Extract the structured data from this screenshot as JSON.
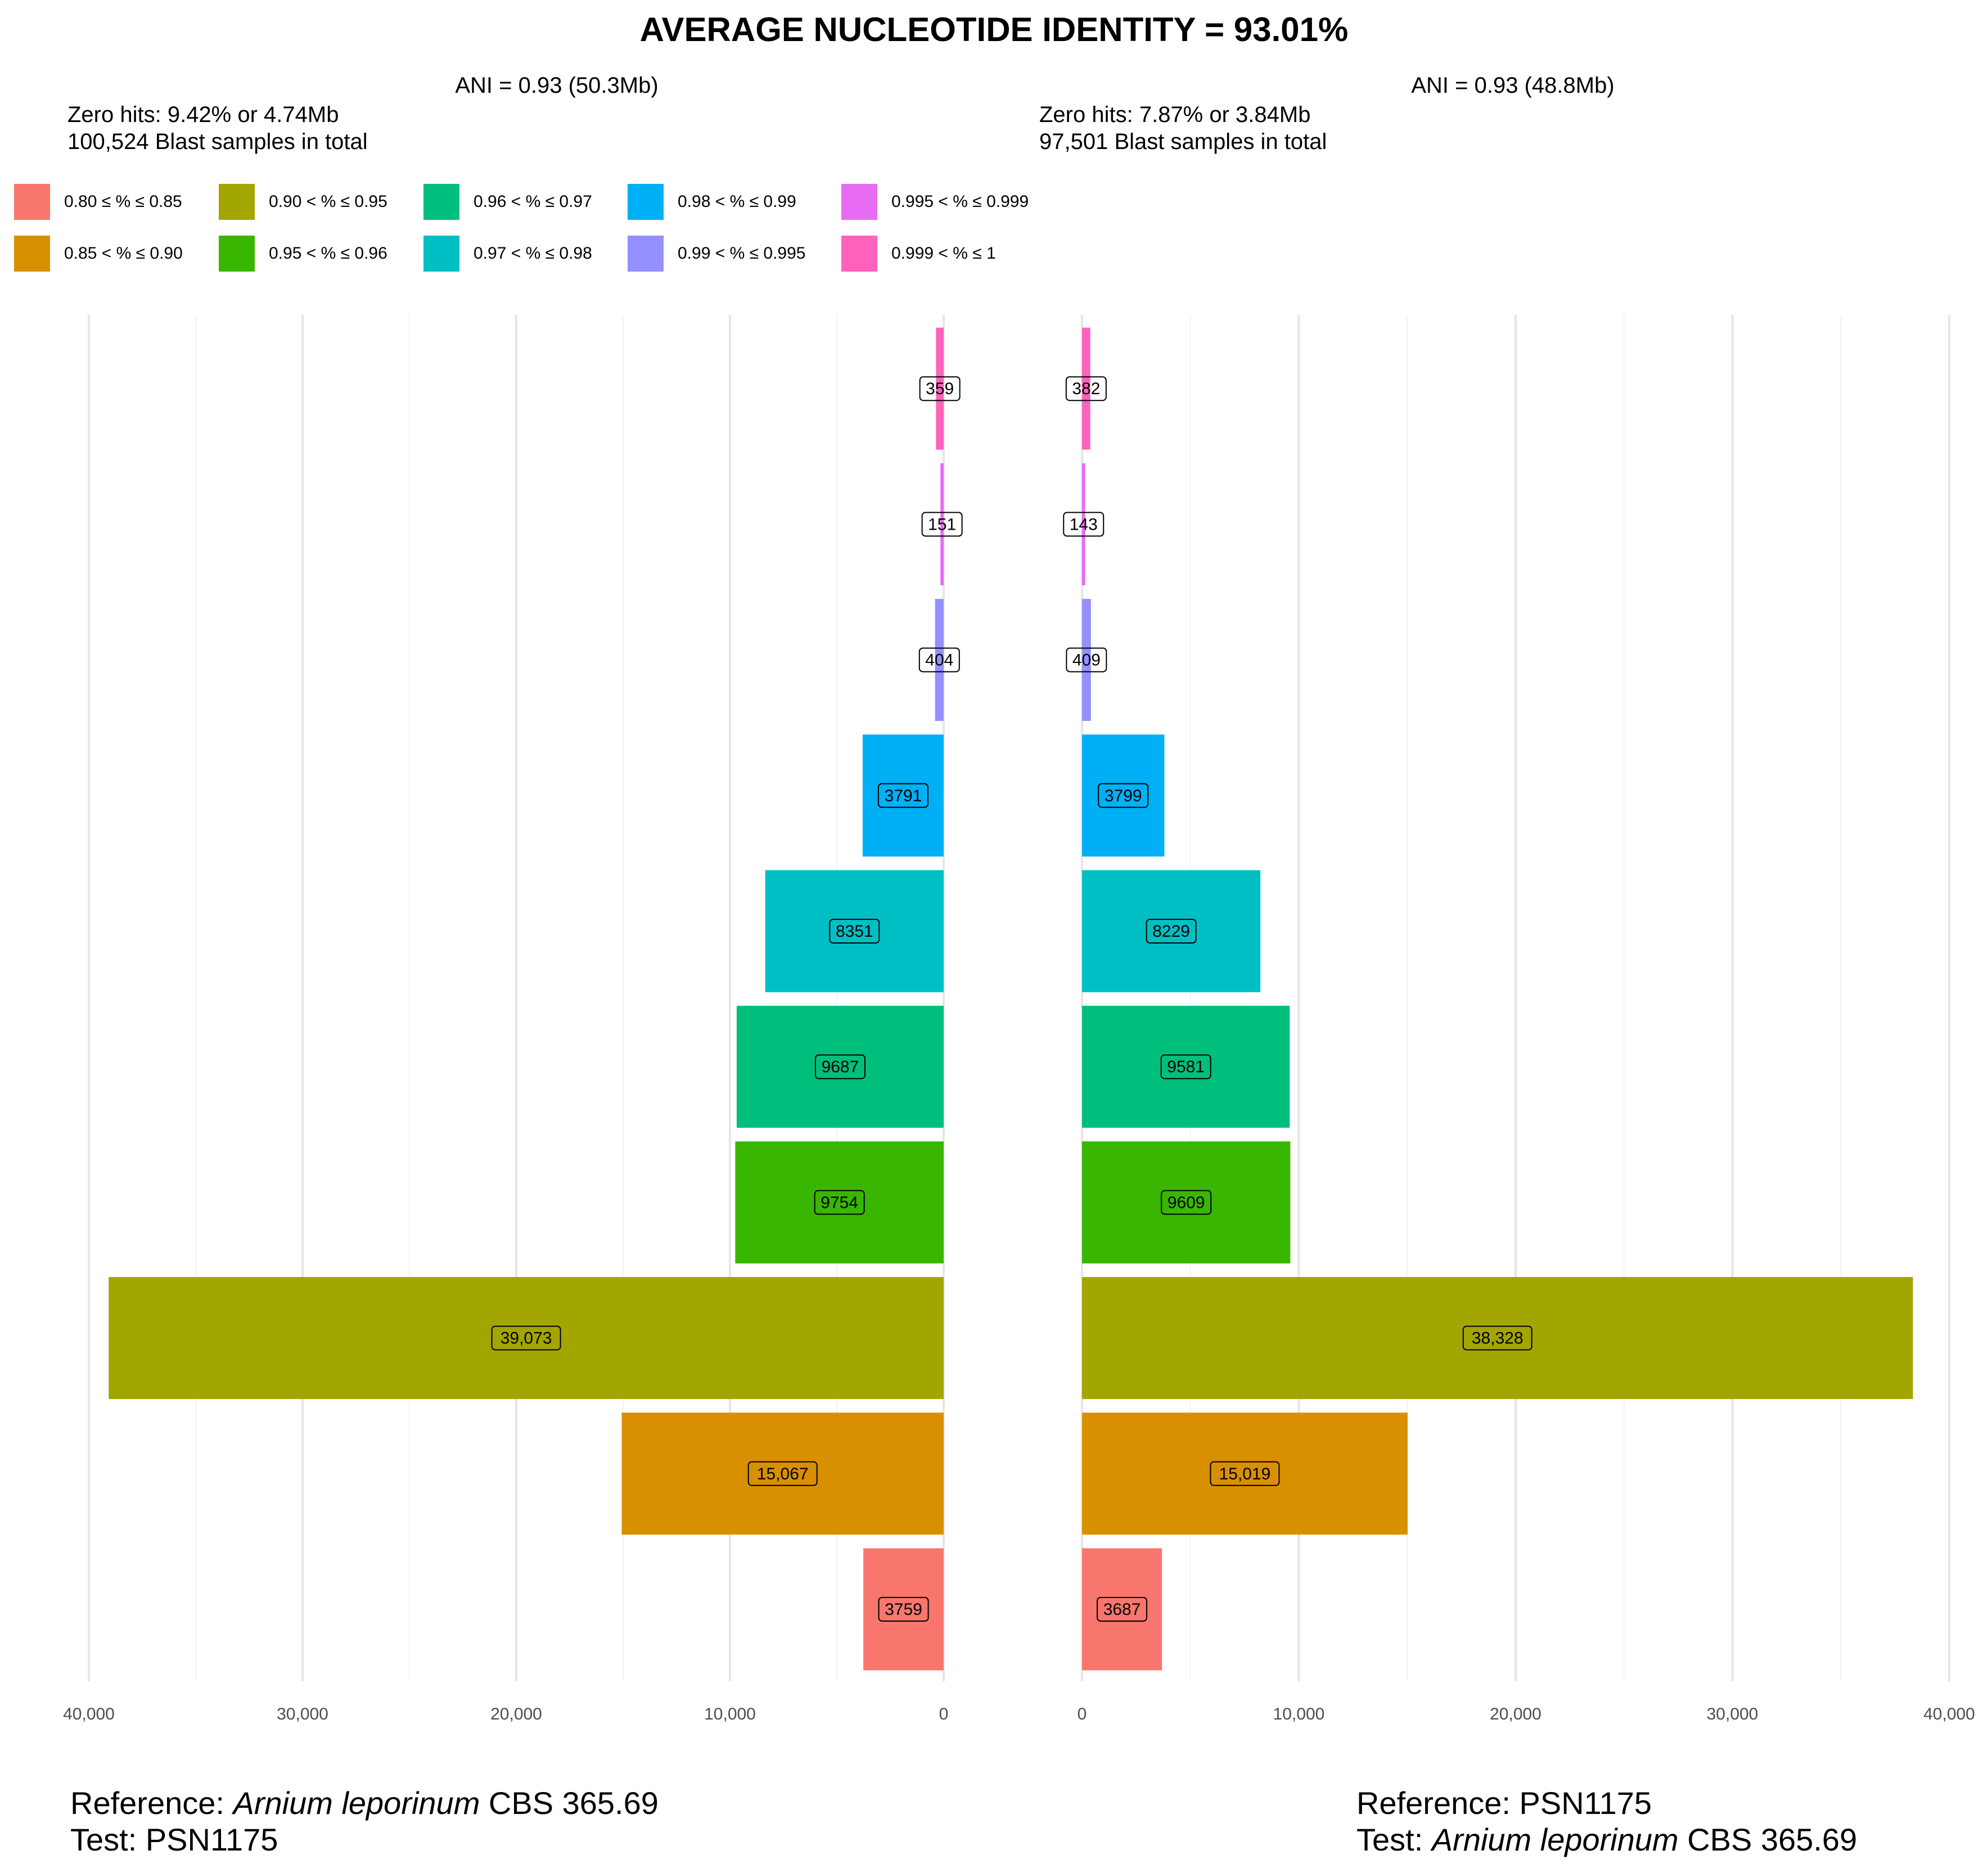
{
  "title": "AVERAGE NUCLEOTIDE IDENTITY = 93.01%",
  "left_panel": {
    "ani": "ANI = 0.93 (50.3Mb)",
    "zero_hits": "Zero hits: 9.42% or 4.74Mb",
    "samples": "100,524 Blast samples in total",
    "reference_label": "Reference:",
    "reference_species": "Arnium leporinum",
    "reference_strain": "CBS 365.69",
    "test_label": "Test:",
    "test_name": "PSN1175"
  },
  "right_panel": {
    "ani": "ANI = 0.93 (48.8Mb)",
    "zero_hits": "Zero hits: 7.87% or 3.84Mb",
    "samples": "97,501 Blast samples in total",
    "reference_label": "Reference:",
    "reference_name": "PSN1175",
    "test_label": "Test:",
    "test_species": "Arnium leporinum",
    "test_strain": "CBS 365.69"
  },
  "legend": [
    {
      "label": "0.80 ≤ % ≤ 0.85",
      "color": "#F8766D"
    },
    {
      "label": "0.85 < % ≤ 0.90",
      "color": "#D89000"
    },
    {
      "label": "0.90 < % ≤ 0.95",
      "color": "#A3A500"
    },
    {
      "label": "0.95 < % ≤ 0.96",
      "color": "#39B600"
    },
    {
      "label": "0.96 < % ≤ 0.97",
      "color": "#00BF7D"
    },
    {
      "label": "0.97 < % ≤ 0.98",
      "color": "#00BFC4"
    },
    {
      "label": "0.98 < % ≤ 0.99",
      "color": "#00B0F6"
    },
    {
      "label": "0.99 < % ≤ 0.995",
      "color": "#9590FF"
    },
    {
      "label": "0.995 < % ≤ 0.999",
      "color": "#E76BF3"
    },
    {
      "label": "0.999 < % ≤ 1",
      "color": "#FF62BC"
    }
  ],
  "chart_data": {
    "type": "bar",
    "orientation": "horizontal-mirrored",
    "categories": [
      "0.80 ≤ % ≤ 0.85",
      "0.85 < % ≤ 0.90",
      "0.90 < % ≤ 0.95",
      "0.95 < % ≤ 0.96",
      "0.96 < % ≤ 0.97",
      "0.97 < % ≤ 0.98",
      "0.98 < % ≤ 0.99",
      "0.99 < % ≤ 0.995",
      "0.995 < % ≤ 0.999",
      "0.999 < % ≤ 1"
    ],
    "series": [
      {
        "values": [
          3759,
          15067,
          39073,
          9754,
          9687,
          8351,
          3791,
          404,
          151,
          359
        ],
        "labels": [
          "3759",
          "15,067",
          "39,073",
          "9754",
          "9687",
          "8351",
          "3791",
          "404",
          "151",
          "359"
        ]
      },
      {
        "values": [
          3687,
          15019,
          38328,
          9609,
          9581,
          8229,
          3799,
          409,
          143,
          382
        ],
        "labels": [
          "3687",
          "15,019",
          "38,328",
          "9609",
          "9581",
          "8229",
          "3799",
          "409",
          "143",
          "382"
        ]
      }
    ],
    "xlim": [
      0,
      40000
    ],
    "x_ticks": [
      0,
      10000,
      20000,
      30000,
      40000
    ],
    "x_tick_labels": [
      "0",
      "10,000",
      "20,000",
      "30,000",
      "40,000"
    ],
    "grid": true
  }
}
